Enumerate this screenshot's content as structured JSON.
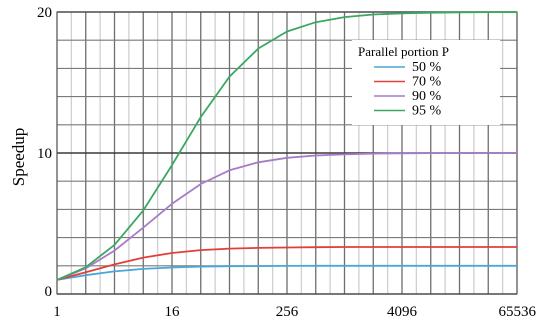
{
  "chart_data": {
    "type": "line",
    "title": "",
    "xlabel": "",
    "ylabel": "Speedup",
    "x_scale": "log2",
    "xlim": [
      1,
      65536
    ],
    "ylim": [
      0,
      20
    ],
    "grid": true,
    "x_ticks": [
      {
        "value": 1,
        "label": "1"
      },
      {
        "value": 16,
        "label": "16"
      },
      {
        "value": 256,
        "label": "256"
      },
      {
        "value": 4096,
        "label": "4096"
      },
      {
        "value": 65536,
        "label": "65536"
      }
    ],
    "y_ticks": [
      {
        "value": 0,
        "label": "0"
      },
      {
        "value": 10,
        "label": "10"
      },
      {
        "value": 20,
        "label": "20"
      }
    ],
    "x": [
      1,
      2,
      4,
      8,
      16,
      32,
      64,
      128,
      256,
      512,
      1024,
      2048,
      4096,
      8192,
      16384,
      32768,
      65536
    ],
    "legend": {
      "title": "Parallel portion P",
      "placement": "top-right"
    },
    "series": [
      {
        "name": "50 %",
        "color": "#4aa7d8",
        "values": [
          1.0,
          1.33,
          1.6,
          1.78,
          1.88,
          1.94,
          1.97,
          1.98,
          1.99,
          2.0,
          2.0,
          2.0,
          2.0,
          2.0,
          2.0,
          2.0,
          2.0
        ]
      },
      {
        "name": "70 %",
        "color": "#e0403c",
        "values": [
          1.0,
          1.54,
          2.1,
          2.58,
          2.91,
          3.11,
          3.22,
          3.27,
          3.3,
          3.32,
          3.33,
          3.33,
          3.33,
          3.33,
          3.33,
          3.33,
          3.33
        ]
      },
      {
        "name": "90 %",
        "color": "#a57cc8",
        "values": [
          1.0,
          1.82,
          3.08,
          4.71,
          6.4,
          7.8,
          8.77,
          9.34,
          9.66,
          9.82,
          9.91,
          9.96,
          9.98,
          9.99,
          9.99,
          10.0,
          10.0
        ]
      },
      {
        "name": "95 %",
        "color": "#3aa860",
        "values": [
          1.0,
          1.9,
          3.48,
          5.93,
          9.14,
          12.55,
          15.42,
          17.41,
          18.62,
          19.28,
          19.64,
          19.82,
          19.91,
          19.95,
          19.98,
          19.99,
          19.99
        ]
      }
    ]
  }
}
